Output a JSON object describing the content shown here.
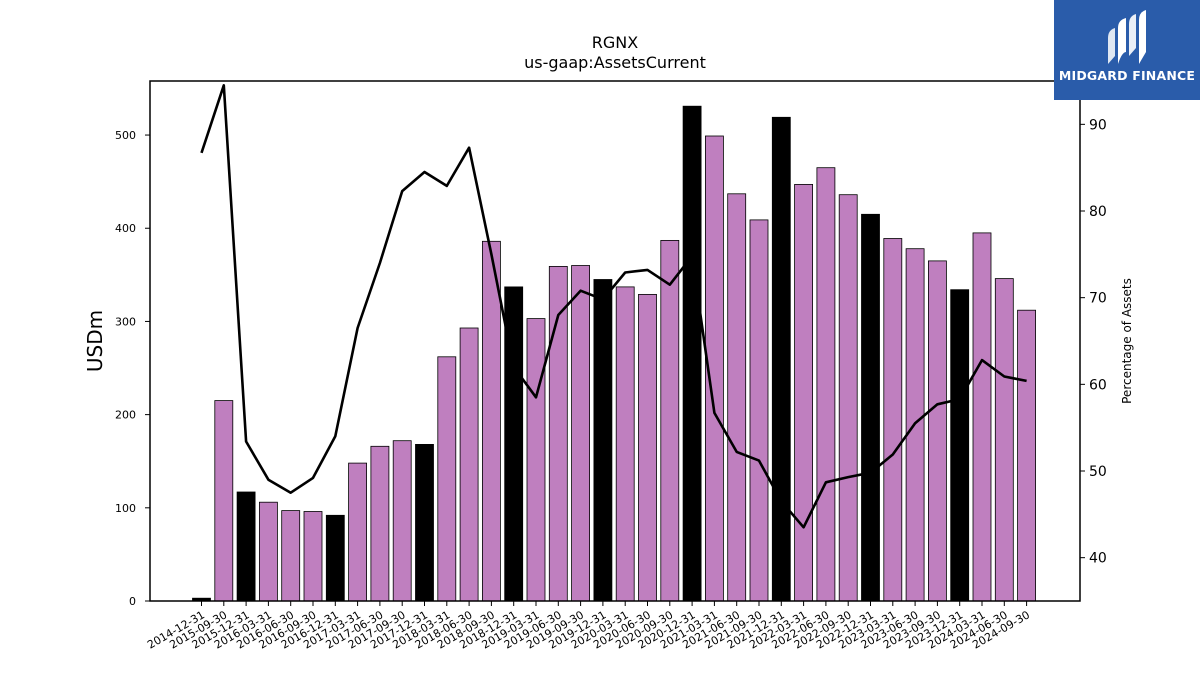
{
  "chart_data": {
    "type": "bar+line",
    "title": "RGNX",
    "subtitle": "us-gaap:AssetsCurrent",
    "ylabel": "USDm",
    "y2label": "Percentage of Assets",
    "ylim": [
      0,
      558
    ],
    "y2lim": [
      35,
      95
    ],
    "yticks": [
      0,
      100,
      200,
      300,
      400,
      500
    ],
    "y2ticks": [
      40,
      50,
      60,
      70,
      80,
      90
    ],
    "categories": [
      "2014-12-31",
      "2015-09-30",
      "2015-12-31",
      "2016-03-31",
      "2016-06-30",
      "2016-09-30",
      "2016-12-31",
      "2017-03-31",
      "2017-06-30",
      "2017-09-30",
      "2017-12-31",
      "2018-03-31",
      "2018-06-30",
      "2018-09-30",
      "2018-12-31",
      "2019-03-31",
      "2019-06-30",
      "2019-09-30",
      "2019-12-31",
      "2020-03-31",
      "2020-06-30",
      "2020-09-30",
      "2020-12-31",
      "2021-03-31",
      "2021-06-30",
      "2021-09-30",
      "2021-12-31",
      "2022-03-31",
      "2022-06-30",
      "2022-09-30",
      "2022-12-31",
      "2023-03-31",
      "2023-06-30",
      "2023-09-30",
      "2023-12-31",
      "2024-03-31",
      "2024-06-30",
      "2024-09-30"
    ],
    "bars": [
      3,
      215,
      117,
      106,
      97,
      96,
      92,
      148,
      166,
      172,
      168,
      262,
      293,
      386,
      337,
      303,
      359,
      360,
      345,
      337,
      329,
      387,
      531,
      499,
      437,
      409,
      519,
      447,
      465,
      436,
      415,
      389,
      378,
      365,
      334,
      395,
      346,
      312
    ],
    "bar_is_year_end": [
      true,
      false,
      true,
      false,
      false,
      false,
      true,
      false,
      false,
      false,
      true,
      false,
      false,
      false,
      true,
      false,
      false,
      false,
      true,
      false,
      false,
      false,
      true,
      false,
      false,
      false,
      true,
      false,
      false,
      false,
      true,
      false,
      false,
      false,
      true,
      false,
      false,
      false
    ],
    "line": [
      86.7,
      94.5,
      53.4,
      49.0,
      47.5,
      49.2,
      54.0,
      66.5,
      74.0,
      82.3,
      84.5,
      82.9,
      87.3,
      75.0,
      62.0,
      58.5,
      68.0,
      70.8,
      69.8,
      72.9,
      73.2,
      71.5,
      74.8,
      56.7,
      52.2,
      51.2,
      46.5,
      43.5,
      48.7,
      49.3,
      49.8,
      51.9,
      55.5,
      57.7,
      58.3,
      62.8,
      60.9,
      60.4
    ],
    "colors": {
      "bar": "#bf7fbf",
      "bar_year_end": "#000000",
      "line": "#000000"
    }
  },
  "logo": {
    "text": "MIDGARD FINANCE"
  }
}
